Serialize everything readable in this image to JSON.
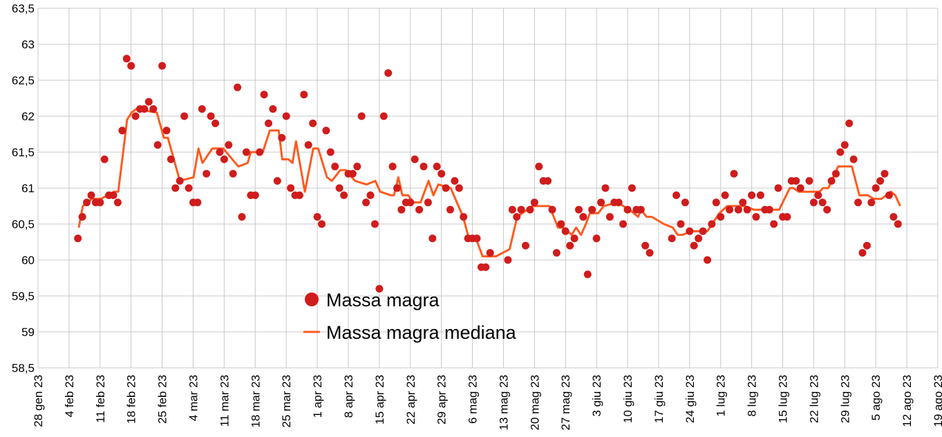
{
  "chart_data": {
    "type": "scatter",
    "title": "",
    "xlabel": "",
    "ylabel": "",
    "x_units": "days since 28 gen 23",
    "xlim": [
      0,
      203
    ],
    "ylim": [
      58.5,
      63.5
    ],
    "y_step": 0.5,
    "grid": true,
    "legend_position": "center-left",
    "x_tick_step_days": 7,
    "x_tick_labels": [
      "28 gen 23",
      "4 feb 23",
      "11 feb 23",
      "18 feb 23",
      "25 feb 23",
      "4 mar 23",
      "11 mar 23",
      "18 mar 23",
      "25 mar 23",
      "1 apr 23",
      "8 apr 23",
      "15 apr 23",
      "22 apr 23",
      "29 apr 23",
      "6 mag 23",
      "13 mag 23",
      "20 mag 23",
      "27 mag 23",
      "3 giu 23",
      "10 giu 23",
      "17 giu 23",
      "24 giu 23",
      "1 lug 23",
      "8 lug 23",
      "15 lug 23",
      "22 lug 23",
      "29 lug 23",
      "5 ago 23",
      "12 ago 23",
      "19 ago 23"
    ],
    "y_tick_labels": [
      "58,5",
      "59",
      "59,5",
      "60",
      "60,5",
      "61",
      "61,5",
      "62",
      "62,5",
      "63",
      "63,5"
    ],
    "series": [
      {
        "name": "Massa magra",
        "kind": "scatter",
        "color": "#d01c1c",
        "points": [
          [
            9,
            60.3
          ],
          [
            10,
            60.6
          ],
          [
            11,
            60.8
          ],
          [
            12,
            60.9
          ],
          [
            13,
            60.8
          ],
          [
            14,
            60.8
          ],
          [
            15,
            61.4
          ],
          [
            16,
            60.9
          ],
          [
            17,
            60.9
          ],
          [
            18,
            60.8
          ],
          [
            19,
            61.8
          ],
          [
            20,
            62.8
          ],
          [
            21,
            62.7
          ],
          [
            22,
            62.0
          ],
          [
            23,
            62.1
          ],
          [
            24,
            62.1
          ],
          [
            25,
            62.2
          ],
          [
            26,
            62.1
          ],
          [
            27,
            61.6
          ],
          [
            28,
            62.7
          ],
          [
            29,
            61.8
          ],
          [
            30,
            61.4
          ],
          [
            31,
            61.0
          ],
          [
            32,
            61.1
          ],
          [
            33,
            62.0
          ],
          [
            34,
            61.0
          ],
          [
            35,
            60.8
          ],
          [
            36,
            60.8
          ],
          [
            37,
            62.1
          ],
          [
            38,
            61.2
          ],
          [
            39,
            62.0
          ],
          [
            40,
            61.9
          ],
          [
            41,
            61.5
          ],
          [
            42,
            61.4
          ],
          [
            43,
            61.6
          ],
          [
            44,
            61.2
          ],
          [
            45,
            62.4
          ],
          [
            46,
            60.6
          ],
          [
            47,
            61.5
          ],
          [
            48,
            60.9
          ],
          [
            49,
            60.9
          ],
          [
            50,
            61.5
          ],
          [
            51,
            62.3
          ],
          [
            52,
            61.9
          ],
          [
            53,
            62.1
          ],
          [
            54,
            61.1
          ],
          [
            55,
            61.7
          ],
          [
            56,
            62.0
          ],
          [
            57,
            61.0
          ],
          [
            58,
            60.9
          ],
          [
            59,
            60.9
          ],
          [
            60,
            62.3
          ],
          [
            61,
            61.6
          ],
          [
            62,
            61.9
          ],
          [
            63,
            60.6
          ],
          [
            64,
            60.5
          ],
          [
            65,
            61.8
          ],
          [
            66,
            61.5
          ],
          [
            67,
            61.3
          ],
          [
            68,
            61.0
          ],
          [
            69,
            60.9
          ],
          [
            70,
            61.2
          ],
          [
            71,
            61.2
          ],
          [
            72,
            61.3
          ],
          [
            73,
            62.0
          ],
          [
            74,
            60.8
          ],
          [
            75,
            60.9
          ],
          [
            76,
            60.5
          ],
          [
            77,
            59.6
          ],
          [
            78,
            62.0
          ],
          [
            79,
            62.6
          ],
          [
            80,
            61.3
          ],
          [
            81,
            61.0
          ],
          [
            82,
            60.7
          ],
          [
            83,
            60.8
          ],
          [
            84,
            60.8
          ],
          [
            85,
            61.4
          ],
          [
            86,
            60.7
          ],
          [
            87,
            61.3
          ],
          [
            88,
            60.8
          ],
          [
            89,
            60.3
          ],
          [
            90,
            61.3
          ],
          [
            91,
            61.2
          ],
          [
            92,
            61.0
          ],
          [
            93,
            60.7
          ],
          [
            94,
            61.1
          ],
          [
            95,
            61.0
          ],
          [
            96,
            60.6
          ],
          [
            97,
            60.3
          ],
          [
            98,
            60.3
          ],
          [
            99,
            60.3
          ],
          [
            100,
            59.9
          ],
          [
            101,
            59.9
          ],
          [
            102,
            60.1
          ],
          [
            106,
            60.0
          ],
          [
            107,
            60.7
          ],
          [
            108,
            60.6
          ],
          [
            109,
            60.7
          ],
          [
            110,
            60.2
          ],
          [
            111,
            60.7
          ],
          [
            112,
            60.8
          ],
          [
            113,
            61.3
          ],
          [
            114,
            61.1
          ],
          [
            115,
            61.1
          ],
          [
            116,
            60.7
          ],
          [
            117,
            60.1
          ],
          [
            118,
            60.5
          ],
          [
            119,
            60.4
          ],
          [
            120,
            60.2
          ],
          [
            121,
            60.3
          ],
          [
            122,
            60.7
          ],
          [
            123,
            60.6
          ],
          [
            124,
            59.8
          ],
          [
            125,
            60.7
          ],
          [
            126,
            60.3
          ],
          [
            127,
            60.8
          ],
          [
            128,
            61.0
          ],
          [
            129,
            60.6
          ],
          [
            130,
            60.8
          ],
          [
            131,
            60.8
          ],
          [
            132,
            60.5
          ],
          [
            133,
            60.7
          ],
          [
            134,
            61.0
          ],
          [
            135,
            60.7
          ],
          [
            136,
            60.7
          ],
          [
            137,
            60.2
          ],
          [
            138,
            60.1
          ],
          [
            143,
            60.3
          ],
          [
            144,
            60.9
          ],
          [
            145,
            60.5
          ],
          [
            146,
            60.8
          ],
          [
            147,
            60.4
          ],
          [
            148,
            60.2
          ],
          [
            149,
            60.3
          ],
          [
            150,
            60.4
          ],
          [
            151,
            60.0
          ],
          [
            152,
            60.5
          ],
          [
            153,
            60.8
          ],
          [
            154,
            60.6
          ],
          [
            155,
            60.9
          ],
          [
            156,
            60.7
          ],
          [
            157,
            61.2
          ],
          [
            158,
            60.7
          ],
          [
            159,
            60.8
          ],
          [
            160,
            60.7
          ],
          [
            161,
            60.9
          ],
          [
            162,
            60.6
          ],
          [
            163,
            60.9
          ],
          [
            164,
            60.7
          ],
          [
            165,
            60.7
          ],
          [
            166,
            60.5
          ],
          [
            167,
            61.0
          ],
          [
            168,
            60.6
          ],
          [
            169,
            60.6
          ],
          [
            170,
            61.1
          ],
          [
            171,
            61.1
          ],
          [
            172,
            61.0
          ],
          [
            174,
            61.1
          ],
          [
            175,
            60.8
          ],
          [
            176,
            60.9
          ],
          [
            177,
            60.8
          ],
          [
            178,
            60.7
          ],
          [
            179,
            61.1
          ],
          [
            180,
            61.2
          ],
          [
            181,
            61.5
          ],
          [
            182,
            61.6
          ],
          [
            183,
            61.9
          ],
          [
            184,
            61.4
          ],
          [
            185,
            60.8
          ],
          [
            186,
            60.1
          ],
          [
            187,
            60.2
          ],
          [
            188,
            60.8
          ],
          [
            189,
            61.0
          ],
          [
            190,
            61.1
          ],
          [
            191,
            61.2
          ],
          [
            192,
            60.9
          ],
          [
            193,
            60.6
          ],
          [
            194,
            60.5
          ]
        ]
      },
      {
        "name": "Massa magra mediana",
        "kind": "line",
        "color": "#ff5a1f",
        "points": [
          [
            9.2,
            60.45
          ],
          [
            10.1,
            60.75
          ],
          [
            12.2,
            60.85
          ],
          [
            14.2,
            60.85
          ],
          [
            17.2,
            60.95
          ],
          [
            18.1,
            60.95
          ],
          [
            19.0,
            61.4
          ],
          [
            20.1,
            61.95
          ],
          [
            21.1,
            62.05
          ],
          [
            22.2,
            62.1
          ],
          [
            26.8,
            62.05
          ],
          [
            28.4,
            61.7
          ],
          [
            29.3,
            61.7
          ],
          [
            32.0,
            61.1
          ],
          [
            35.1,
            61.15
          ],
          [
            36.2,
            61.55
          ],
          [
            37.1,
            61.35
          ],
          [
            39.3,
            61.55
          ],
          [
            41.8,
            61.55
          ],
          [
            45.2,
            61.3
          ],
          [
            47.3,
            61.35
          ],
          [
            48.0,
            61.5
          ],
          [
            50.7,
            61.5
          ],
          [
            52.3,
            61.8
          ],
          [
            54.3,
            61.8
          ],
          [
            55.1,
            61.4
          ],
          [
            56.5,
            61.4
          ],
          [
            57.4,
            61.35
          ],
          [
            58.2,
            61.65
          ],
          [
            60.2,
            60.95
          ],
          [
            62.1,
            61.55
          ],
          [
            63.2,
            61.55
          ],
          [
            65.2,
            61.15
          ],
          [
            66.3,
            61.1
          ],
          [
            68.2,
            61.25
          ],
          [
            69.4,
            61.25
          ],
          [
            71.5,
            61.1
          ],
          [
            74.1,
            61.05
          ],
          [
            76.1,
            61.1
          ],
          [
            77.2,
            60.95
          ],
          [
            79.6,
            60.9
          ],
          [
            80.3,
            60.9
          ],
          [
            81.3,
            61.15
          ],
          [
            82.2,
            60.9
          ],
          [
            83.5,
            60.9
          ],
          [
            84.7,
            60.8
          ],
          [
            86.3,
            60.8
          ],
          [
            88.1,
            61.1
          ],
          [
            89.2,
            60.9
          ],
          [
            90.3,
            61.05
          ],
          [
            93.1,
            61.0
          ],
          [
            95.9,
            60.6
          ],
          [
            97.2,
            60.3
          ],
          [
            98.8,
            60.3
          ],
          [
            100.3,
            60.05
          ],
          [
            103.3,
            60.05
          ],
          [
            106.4,
            60.15
          ],
          [
            108.1,
            60.6
          ],
          [
            111.5,
            60.75
          ],
          [
            115.4,
            60.75
          ],
          [
            117.3,
            60.45
          ],
          [
            118.6,
            60.45
          ],
          [
            120.4,
            60.35
          ],
          [
            121.4,
            60.45
          ],
          [
            122.5,
            60.35
          ],
          [
            123.6,
            60.5
          ],
          [
            124.5,
            60.65
          ],
          [
            126.4,
            60.65
          ],
          [
            127.6,
            60.75
          ],
          [
            130.7,
            60.8
          ],
          [
            133.4,
            60.7
          ],
          [
            135.4,
            60.6
          ],
          [
            136.0,
            60.7
          ],
          [
            137.3,
            60.6
          ],
          [
            138.5,
            60.6
          ],
          [
            141.2,
            60.5
          ],
          [
            143.2,
            60.45
          ],
          [
            144.3,
            60.35
          ],
          [
            145.4,
            60.35
          ],
          [
            147.4,
            60.4
          ],
          [
            151.0,
            60.4
          ],
          [
            153.7,
            60.65
          ],
          [
            155.5,
            60.75
          ],
          [
            159.4,
            60.75
          ],
          [
            161.5,
            60.7
          ],
          [
            167.2,
            60.7
          ],
          [
            169.6,
            61.0
          ],
          [
            170.4,
            61.0
          ],
          [
            171.6,
            60.95
          ],
          [
            176.3,
            60.95
          ],
          [
            177.1,
            61.0
          ],
          [
            178.3,
            61.0
          ],
          [
            180.5,
            61.3
          ],
          [
            183.6,
            61.3
          ],
          [
            185.3,
            60.9
          ],
          [
            187.2,
            60.9
          ],
          [
            188.5,
            60.85
          ],
          [
            190.3,
            60.85
          ],
          [
            192.4,
            60.95
          ],
          [
            193.4,
            60.9
          ],
          [
            194.5,
            60.75
          ]
        ]
      }
    ]
  }
}
